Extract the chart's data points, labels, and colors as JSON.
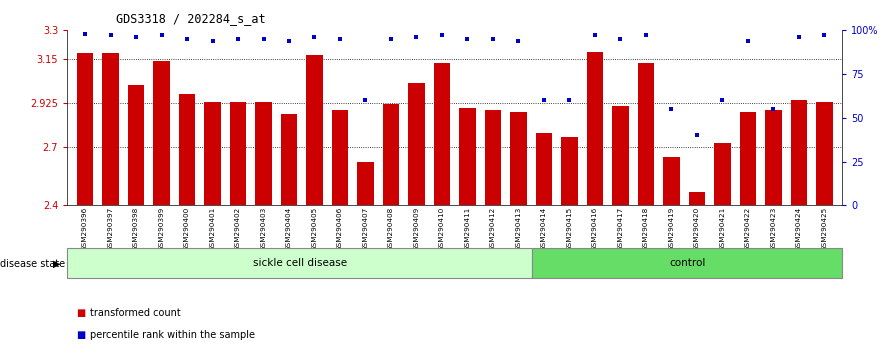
{
  "title": "GDS3318 / 202284_s_at",
  "samples": [
    "GSM290396",
    "GSM290397",
    "GSM290398",
    "GSM290399",
    "GSM290400",
    "GSM290401",
    "GSM290402",
    "GSM290403",
    "GSM290404",
    "GSM290405",
    "GSM290406",
    "GSM290407",
    "GSM290408",
    "GSM290409",
    "GSM290410",
    "GSM290411",
    "GSM290412",
    "GSM290413",
    "GSM290414",
    "GSM290415",
    "GSM290416",
    "GSM290417",
    "GSM290418",
    "GSM290419",
    "GSM290420",
    "GSM290421",
    "GSM290422",
    "GSM290423",
    "GSM290424",
    "GSM290425"
  ],
  "values": [
    3.18,
    3.18,
    3.02,
    3.14,
    2.97,
    2.93,
    2.93,
    2.93,
    2.87,
    3.17,
    2.89,
    2.62,
    2.92,
    3.03,
    3.13,
    2.9,
    2.89,
    2.88,
    2.77,
    2.75,
    3.19,
    2.91,
    3.13,
    2.65,
    2.47,
    2.72,
    2.88,
    2.89,
    2.94,
    2.93
  ],
  "percentile_values": [
    98,
    97,
    96,
    97,
    95,
    94,
    95,
    95,
    94,
    96,
    95,
    60,
    95,
    96,
    97,
    95,
    95,
    94,
    60,
    60,
    97,
    95,
    97,
    55,
    40,
    60,
    94,
    55,
    96,
    97
  ],
  "sickle_count": 18,
  "control_count": 12,
  "bar_color": "#cc0000",
  "percentile_color": "#0000cc",
  "ylim_left": [
    2.4,
    3.3
  ],
  "ylim_right": [
    0,
    100
  ],
  "yticks_left": [
    2.4,
    2.7,
    2.925,
    3.15,
    3.3
  ],
  "ytick_labels_left": [
    "2.4",
    "2.7",
    "2.925",
    "3.15",
    "3.3"
  ],
  "yticks_right": [
    0,
    25,
    50,
    75,
    100
  ],
  "ytick_labels_right": [
    "0",
    "25",
    "50",
    "75",
    "100%"
  ],
  "grid_values": [
    2.7,
    2.925,
    3.15
  ],
  "sickle_color": "#ccffcc",
  "control_color": "#66dd66",
  "legend_items": [
    "transformed count",
    "percentile rank within the sample"
  ],
  "legend_colors": [
    "#cc0000",
    "#0000cc"
  ],
  "disease_state_label": "disease state",
  "sickle_label": "sickle cell disease",
  "control_label": "control"
}
